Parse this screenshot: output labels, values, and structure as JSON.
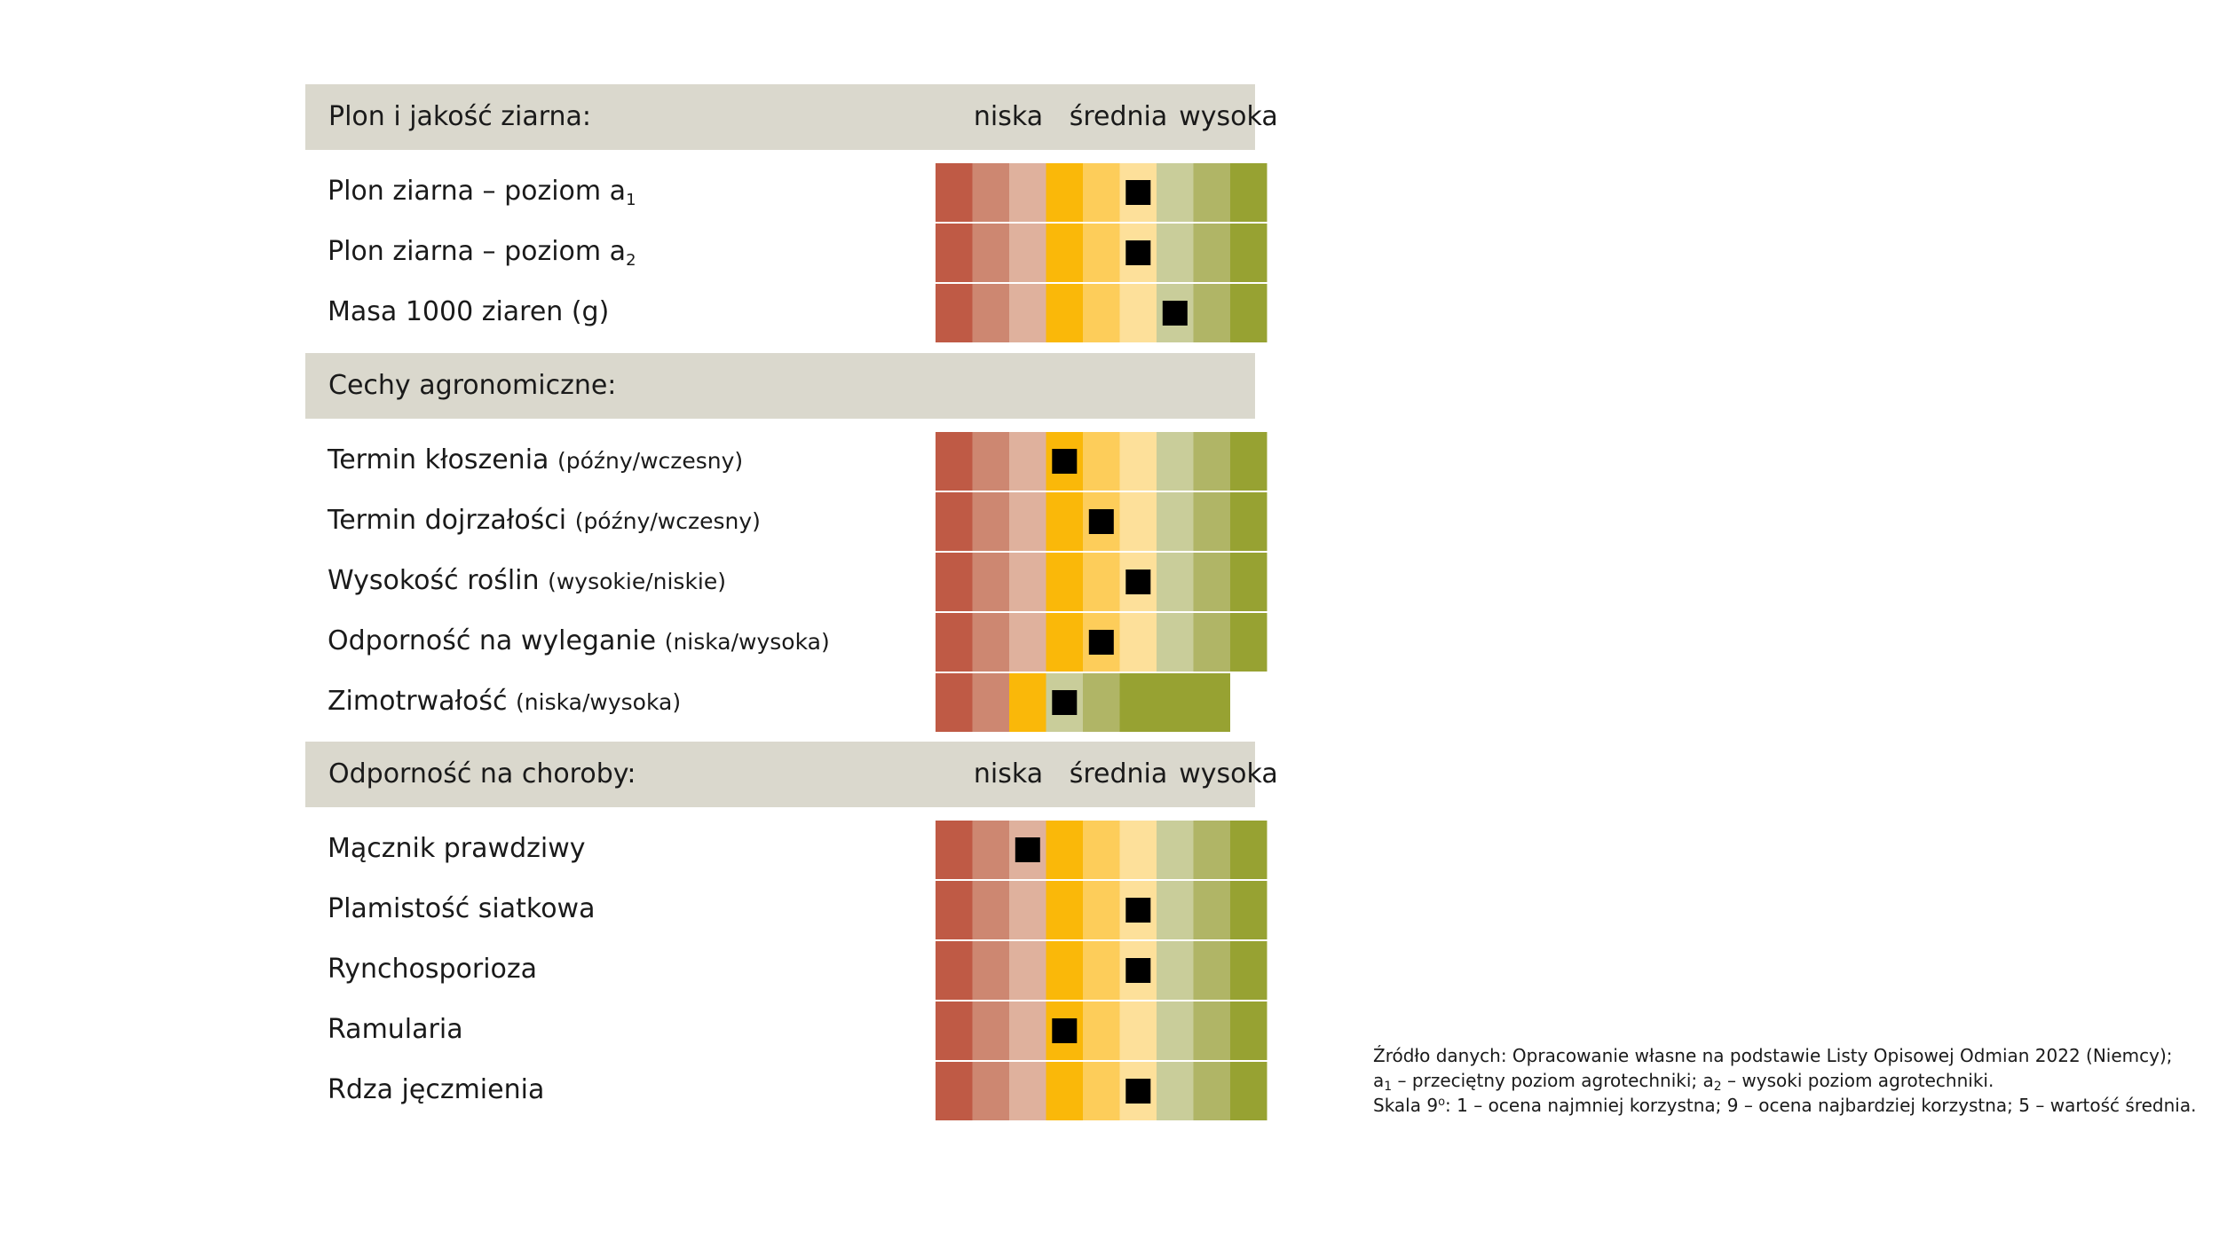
{
  "colors": {
    "header_bg": "#dad8cd",
    "marker": "#000000",
    "cells9": [
      "#bf5a45",
      "#cd8771",
      "#dfb19d",
      "#fab809",
      "#fdcd5a",
      "#fde09a",
      "#c9cd9a",
      "#b0b566",
      "#97a232"
    ],
    "cells_zimotrwalosc": [
      "#bf5a45",
      "#cd8771",
      "#fab809",
      "#c9cd9a",
      "#b0b566",
      "#97a232",
      "#97a232"
    ]
  },
  "headers": [
    {
      "title": "Plon i jakość ziarna:",
      "scale": [
        "niska",
        "średnia",
        "wysoka"
      ]
    },
    {
      "title": "Cechy agronomiczne:",
      "scale": []
    },
    {
      "title": "Odporność na choroby:",
      "scale": [
        "niska",
        "średnia",
        "wysoka"
      ]
    }
  ],
  "rows": [
    {
      "label": "Plon ziarna – poziom a",
      "sub": "1",
      "note": ""
    },
    {
      "label": "Plon ziarna – poziom a",
      "sub": "2",
      "note": ""
    },
    {
      "label": "Masa 1000 ziaren (g)",
      "sub": "",
      "note": ""
    },
    {
      "label": "Termin kłoszenia",
      "sub": "",
      "note": "(późny/wczesny)"
    },
    {
      "label": "Termin dojrzałości",
      "sub": "",
      "note": "(późny/wczesny)"
    },
    {
      "label": "Wysokość roślin",
      "sub": "",
      "note": "(wysokie/niskie)"
    },
    {
      "label": "Odporność na wyleganie",
      "sub": "",
      "note": "(niska/wysoka)"
    },
    {
      "label": "Zimotrwałość",
      "sub": "",
      "note": "(niska/wysoka)"
    },
    {
      "label": "Mącznik prawdziwy",
      "sub": "",
      "note": ""
    },
    {
      "label": "Plamistość siatkowa",
      "sub": "",
      "note": ""
    },
    {
      "label": "Rynchosporioza",
      "sub": "",
      "note": ""
    },
    {
      "label": "Ramularia",
      "sub": "",
      "note": ""
    },
    {
      "label": "Rdza jęczmienia",
      "sub": "",
      "note": ""
    }
  ],
  "chart_data": {
    "type": "table",
    "scale": "9°: 1 – ocena najmniej korzystna; 9 – ocena najbardziej korzystna; 5 – wartość średnia",
    "scale_labels": [
      "niska",
      "średnia",
      "wysoka"
    ],
    "groups": [
      {
        "name": "Plon i jakość ziarna:",
        "items": [
          {
            "name": "Plon ziarna – poziom a1",
            "value": 6
          },
          {
            "name": "Plon ziarna – poziom a2",
            "value": 6
          },
          {
            "name": "Masa 1000 ziaren (g)",
            "value": 7
          }
        ]
      },
      {
        "name": "Cechy agronomiczne:",
        "items": [
          {
            "name": "Termin kłoszenia (późny/wczesny)",
            "value": 4
          },
          {
            "name": "Termin dojrzałości (późny/wczesny)",
            "value": 5
          },
          {
            "name": "Wysokość roślin (wysokie/niskie)",
            "value": 6
          },
          {
            "name": "Odporność na wyleganie (niska/wysoka)",
            "value": 5
          },
          {
            "name": "Zimotrwałość (niska/wysoka)",
            "value": 4
          }
        ]
      },
      {
        "name": "Odporność na choroby:",
        "items": [
          {
            "name": "Mącznik prawdziwy",
            "value": 3
          },
          {
            "name": "Plamistość siatkowa",
            "value": 6
          },
          {
            "name": "Rynchosporioza",
            "value": 6
          },
          {
            "name": "Ramularia",
            "value": 4
          },
          {
            "name": "Rdza jęczmienia",
            "value": 6
          }
        ]
      }
    ]
  },
  "source": {
    "line1": "Źródło danych: Opracowanie własne na podstawie Listy Opisowej Odmian 2022 (Niemcy);",
    "l2_a": "a",
    "l2_sub1": "1",
    "l2_b": " – przeciętny poziom agrotechniki; a",
    "l2_sub2": "2",
    "l2_c": " – wysoki poziom agrotechniki.",
    "l3_a": "Skala 9",
    "l3_sup": "o",
    "l3_b": ": 1 – ocena najmniej korzystna; 9 – ocena najbardziej korzystna; 5 – wartość średnia."
  }
}
